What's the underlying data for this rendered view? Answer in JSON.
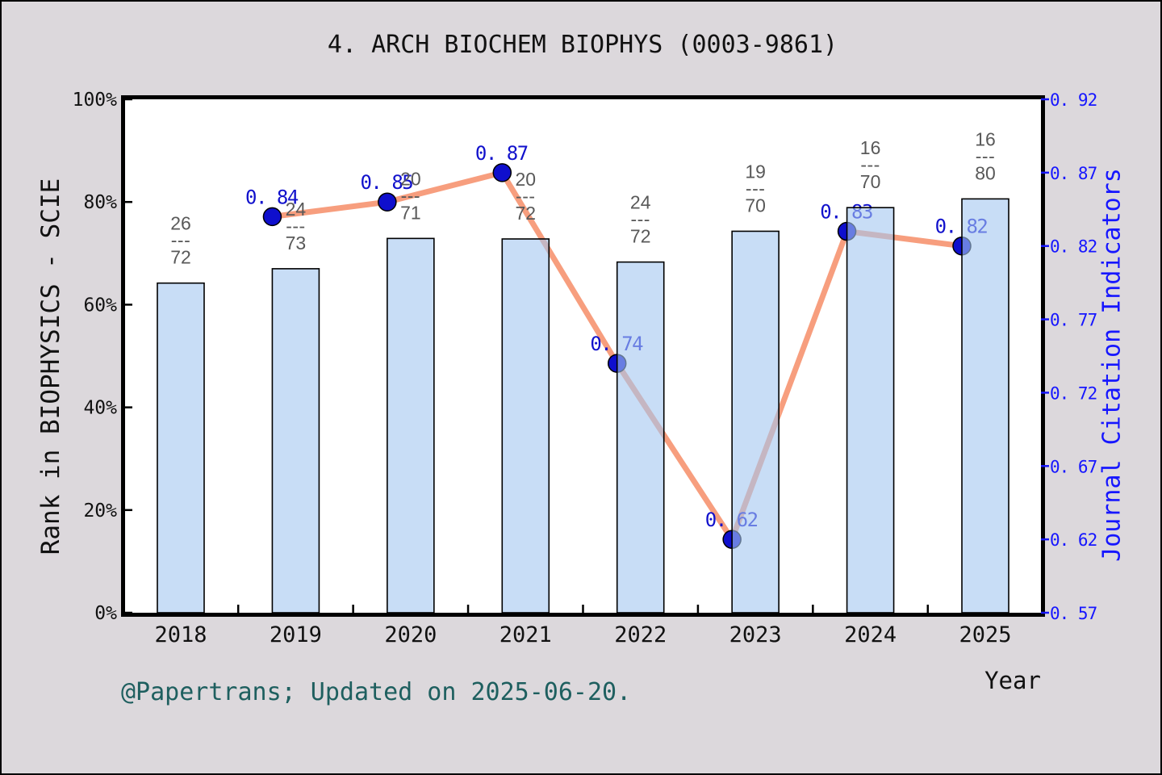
{
  "title": "4. ARCH BIOCHEM BIOPHYS (0003-9861)",
  "footer": "@Papertrans; Updated on 2025-06-20.",
  "axis_left": {
    "title": "Rank in BIOPHYSICS - SCIE",
    "tick_labels": [
      "0%",
      "20%",
      "40%",
      "60%",
      "80%",
      "100%"
    ],
    "tick_values": [
      0,
      20,
      40,
      60,
      80,
      100
    ],
    "range": [
      0,
      100
    ]
  },
  "axis_right": {
    "title": "Journal Citation Indicators",
    "tick_labels": [
      "0. 57",
      "0. 62",
      "0. 67",
      "0. 72",
      "0. 77",
      "0. 82",
      "0. 87",
      "0. 92"
    ],
    "tick_values": [
      0.57,
      0.62,
      0.67,
      0.72,
      0.77,
      0.82,
      0.87,
      0.92
    ],
    "range": [
      0.57,
      0.92
    ]
  },
  "axis_bottom": {
    "title": "Year",
    "tick_labels": [
      "2018",
      "2019",
      "2020",
      "2021",
      "2022",
      "2023",
      "2024",
      "2025"
    ]
  },
  "chart_data": {
    "type": "bar+line",
    "categories": [
      2018,
      2019,
      2020,
      2021,
      2022,
      2023,
      2024,
      2025
    ],
    "series": [
      {
        "name": "Rank in BIOPHYSICS - SCIE",
        "type": "bar",
        "axis": "left",
        "unit": "percentile",
        "values": [
          64.2,
          67.0,
          72.9,
          72.8,
          68.3,
          74.3,
          78.9,
          80.6
        ],
        "ranks": [
          26,
          24,
          20,
          20,
          24,
          19,
          16,
          16
        ],
        "totals": [
          72,
          73,
          71,
          72,
          72,
          70,
          70,
          80
        ],
        "fraction_separator": "---"
      },
      {
        "name": "Journal Citation Indicators",
        "type": "line",
        "axis": "right",
        "values": [
          null,
          0.84,
          0.85,
          0.87,
          0.74,
          0.62,
          0.83,
          0.82
        ],
        "point_labels": [
          "",
          "0. 84",
          "0. 85",
          "0. 87",
          "0. 74",
          "0. 62",
          "0. 83",
          "0. 82"
        ]
      }
    ],
    "ylim_left": [
      0,
      100
    ],
    "ylim_right": [
      0.57,
      0.92
    ],
    "grid": false,
    "legend": null
  },
  "colors": {
    "background": "#dcd8dc",
    "plot_background": "#ffffff",
    "frame": "#000000",
    "bar_fill_rgba": "rgba(163,199,240,0.6)",
    "bar_edge": "#000000",
    "line": "#f79e7e",
    "marker": "#0f0fcd",
    "marker_edge": "#000000",
    "value_label": "#1111cc",
    "fraction_label": "#595959",
    "left_axis_text": "#111111",
    "right_axis_text": "#1616ff",
    "footer_text": "#1e5f5f"
  }
}
